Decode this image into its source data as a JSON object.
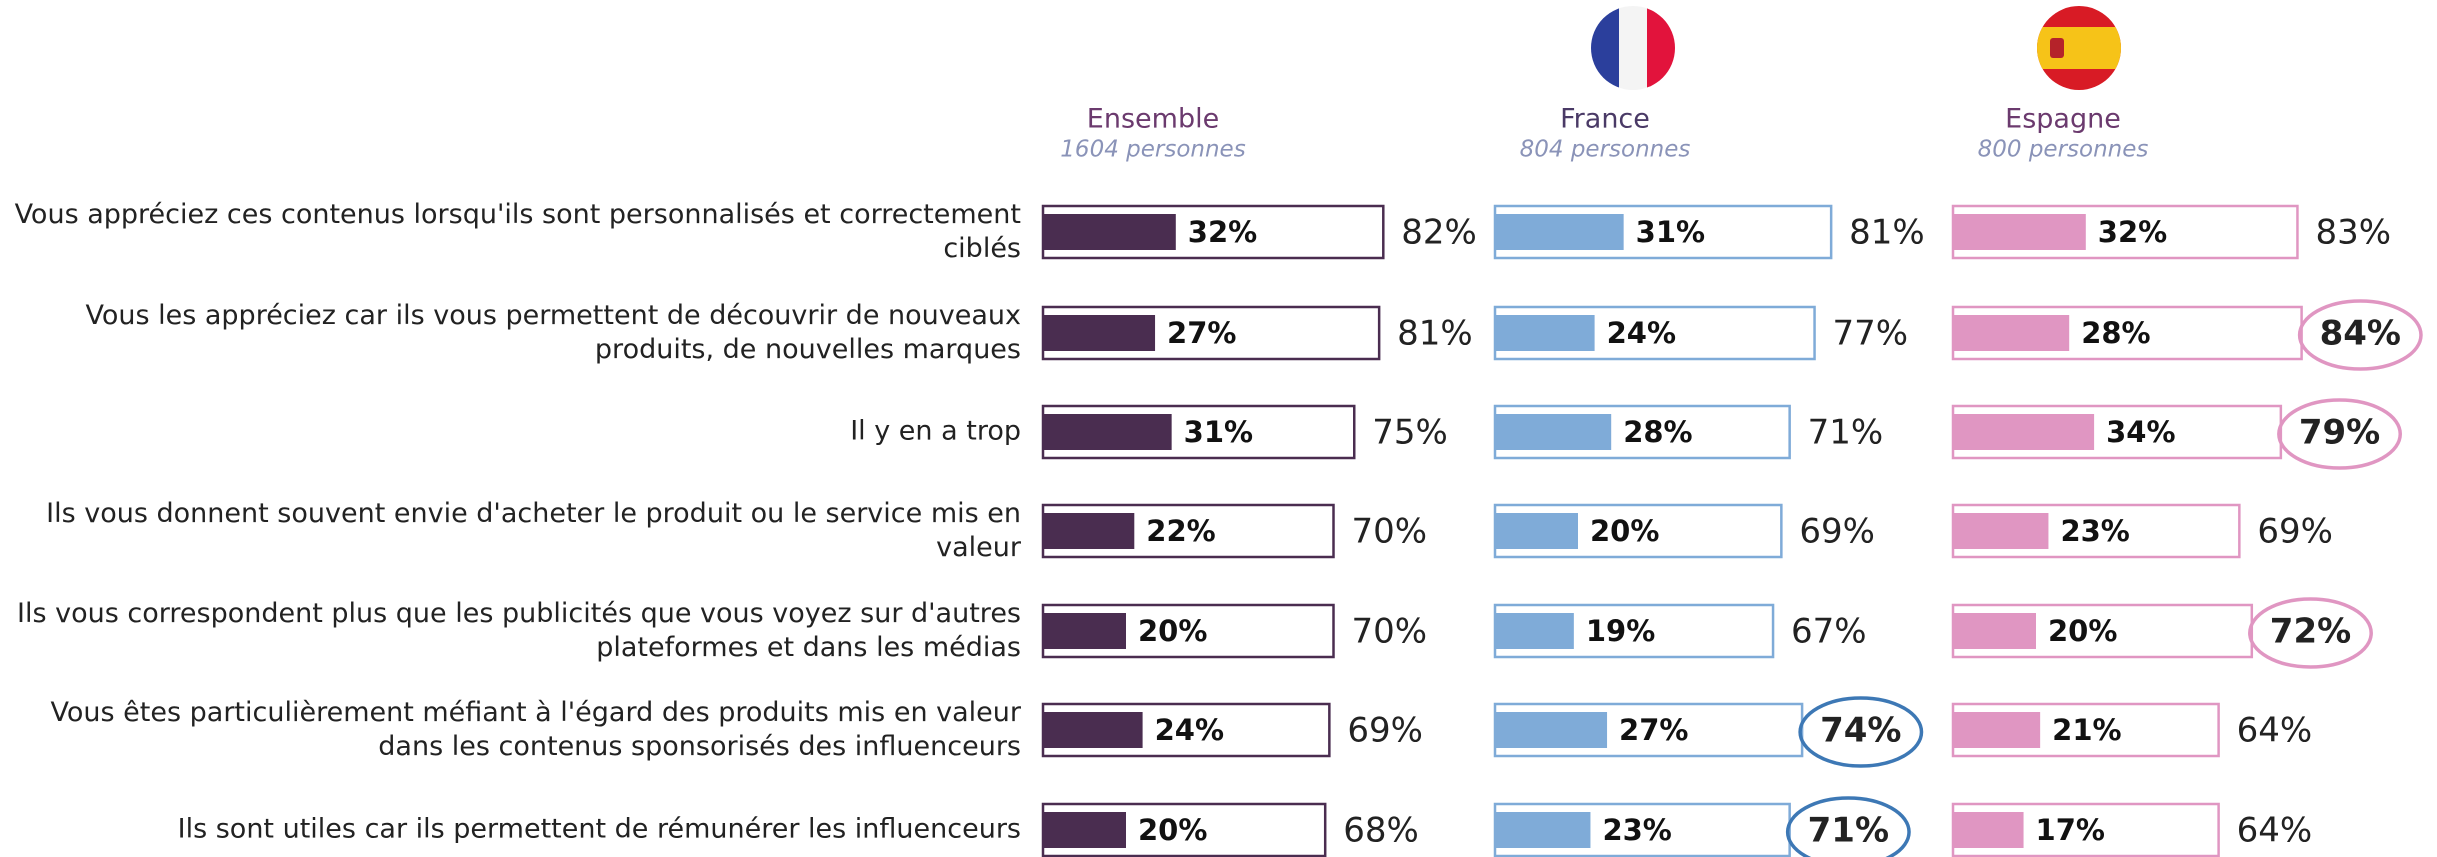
{
  "chart_data": {
    "type": "bar",
    "xlim": [
      0,
      100
    ],
    "categories": [
      "Vous appréciez ces contenus lorsqu'ils sont personnalisés et correctement ciblés",
      "Vous les appréciez car ils vous permettent de découvrir de nouveaux produits, de nouvelles marques",
      "Il y en a trop",
      "Ils vous donnent souvent envie d'acheter le produit ou le service mis en valeur",
      "Ils vous correspondent plus que les publicités que vous voyez sur d'autres plateformes et dans les médias",
      "Vous êtes particulièrement méfiant à l'égard des produits mis en valeur dans les contenus sponsorisés des influenceurs",
      "Ils sont utiles car ils permettent de rémunérer les influenceurs"
    ],
    "groups": [
      {
        "name": "Ensemble",
        "subtitle": "1604 personnes",
        "color": "#4a2d50",
        "circle_color": "#4a2d50",
        "values": [
          32,
          27,
          31,
          22,
          20,
          24,
          20
        ],
        "value_labels": [
          "32%",
          "27%",
          "31%",
          "22%",
          "20%",
          "24%",
          "20%"
        ],
        "totals": [
          82,
          81,
          75,
          70,
          70,
          69,
          68
        ],
        "total_labels": [
          "82%",
          "81%",
          "75%",
          "70%",
          "70%",
          "69%",
          "68%"
        ],
        "circled": [
          false,
          false,
          false,
          false,
          false,
          false,
          false
        ]
      },
      {
        "name": "France",
        "subtitle": "804 personnes",
        "color": "#7fabd8",
        "circle_color": "#3d78b5",
        "values": [
          31,
          24,
          28,
          20,
          19,
          27,
          23
        ],
        "value_labels": [
          "31%",
          "24%",
          "28%",
          "20%",
          "19%",
          "27%",
          "23%"
        ],
        "totals": [
          81,
          77,
          71,
          69,
          67,
          74,
          71
        ],
        "total_labels": [
          "81%",
          "77%",
          "71%",
          "69%",
          "67%",
          "74%",
          "71%"
        ],
        "circled": [
          false,
          false,
          false,
          false,
          false,
          true,
          true
        ]
      },
      {
        "name": "Espagne",
        "subtitle": "800 personnes",
        "color": "#e096c2",
        "circle_color": "#e096c2",
        "values": [
          32,
          28,
          34,
          23,
          20,
          21,
          17
        ],
        "value_labels": [
          "32%",
          "28%",
          "34%",
          "23%",
          "20%",
          "21%",
          "17%"
        ],
        "totals": [
          83,
          84,
          79,
          69,
          72,
          64,
          64
        ],
        "total_labels": [
          "83%",
          "84%",
          "79%",
          "69%",
          "72%",
          "64%",
          "64%"
        ],
        "circled": [
          false,
          true,
          true,
          false,
          true,
          false,
          false
        ]
      }
    ]
  }
}
